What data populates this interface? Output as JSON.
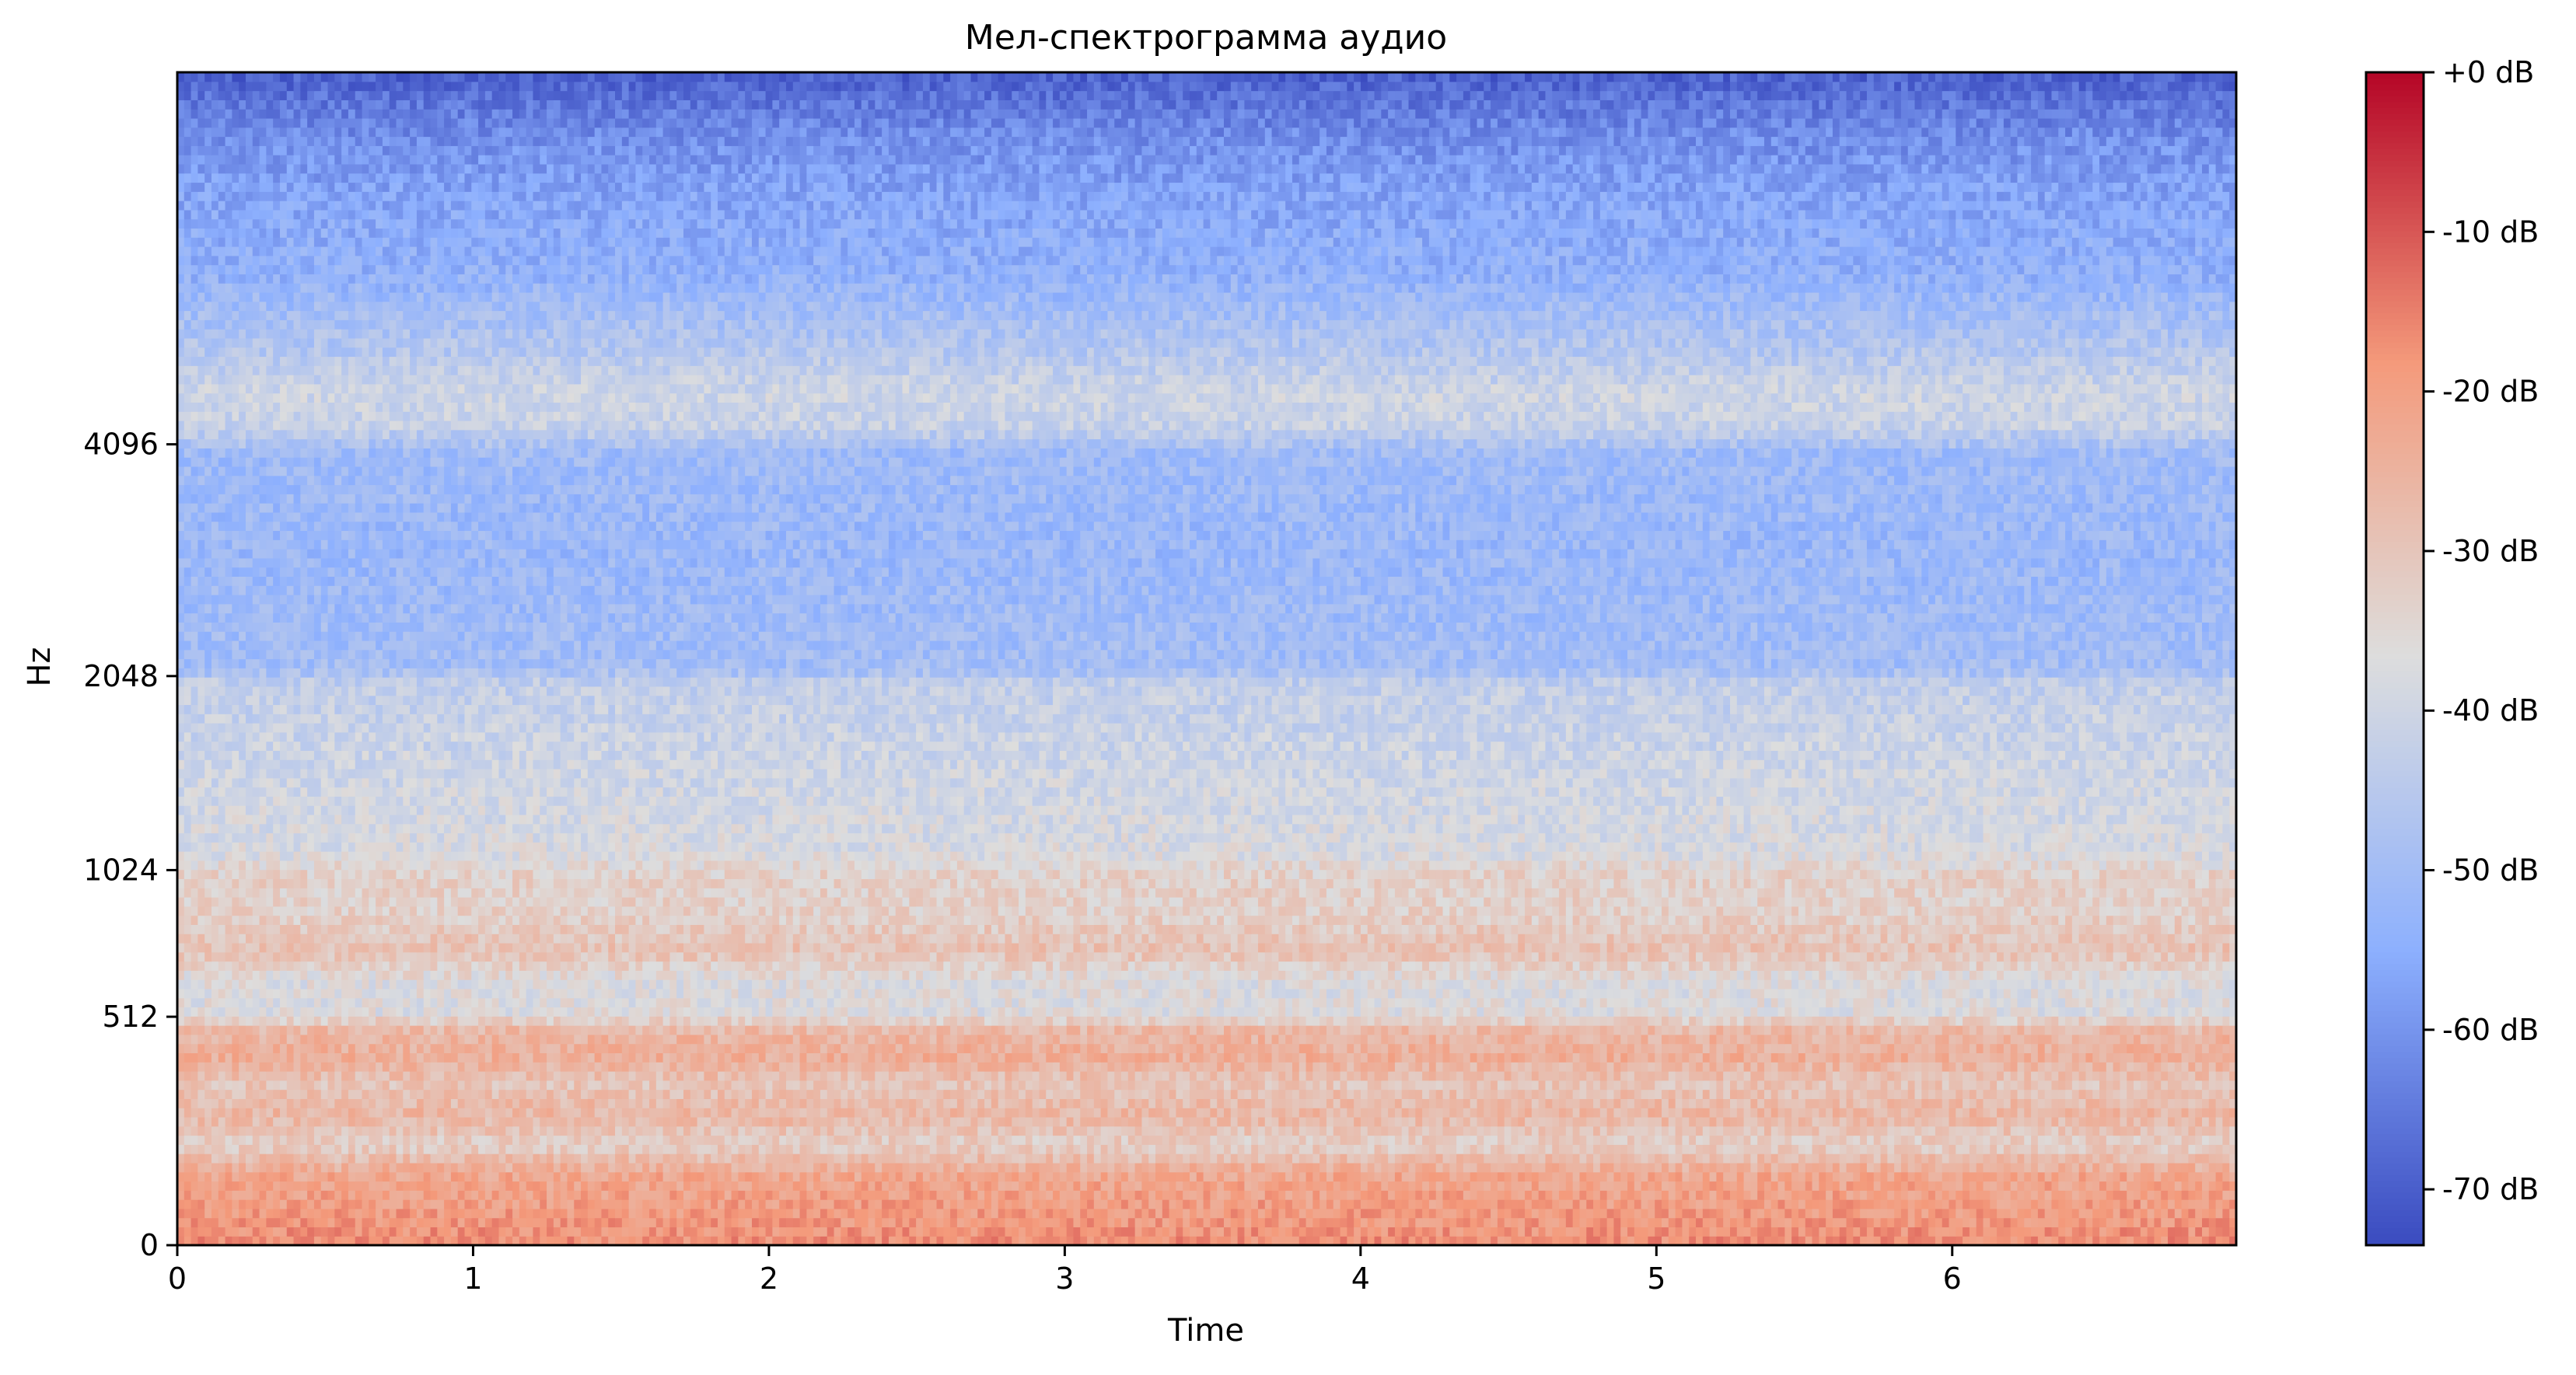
{
  "chart_data": {
    "type": "heatmap",
    "title": "Мел-спектрограмма аудио",
    "xlabel": "Time",
    "ylabel": "Hz",
    "x_ticks": [
      {
        "value": 0,
        "label": "0"
      },
      {
        "value": 1,
        "label": "1"
      },
      {
        "value": 2,
        "label": "2"
      },
      {
        "value": 3,
        "label": "3"
      },
      {
        "value": 4,
        "label": "4"
      },
      {
        "value": 5,
        "label": "5"
      },
      {
        "value": 6,
        "label": "6"
      }
    ],
    "xlim": [
      0,
      6.96
    ],
    "y_scale": "mel",
    "y_ticks": [
      {
        "value": 0,
        "label": "0"
      },
      {
        "value": 512,
        "label": "512"
      },
      {
        "value": 1024,
        "label": "1024"
      },
      {
        "value": 2048,
        "label": "2048"
      },
      {
        "value": 4096,
        "label": "4096"
      }
    ],
    "ylim_hz": [
      0,
      11025
    ],
    "colormap": "coolwarm",
    "colorbar": {
      "range": [
        -73.5,
        0
      ],
      "ticks": [
        {
          "value": 0,
          "label": "+0 dB"
        },
        {
          "value": -10,
          "label": "-10 dB"
        },
        {
          "value": -20,
          "label": "-20 dB"
        },
        {
          "value": -30,
          "label": "-30 dB"
        },
        {
          "value": -40,
          "label": "-40 dB"
        },
        {
          "value": -50,
          "label": "-50 dB"
        },
        {
          "value": -60,
          "label": "-60 dB"
        },
        {
          "value": -70,
          "label": "-70 dB"
        }
      ]
    },
    "frequency_profile_db": [
      {
        "hz": 0,
        "db": -17
      },
      {
        "hz": 128,
        "db": -22
      },
      {
        "hz": 192,
        "db": -33
      },
      {
        "hz": 256,
        "db": -26
      },
      {
        "hz": 330,
        "db": -30
      },
      {
        "hz": 400,
        "db": -24
      },
      {
        "hz": 470,
        "db": -26
      },
      {
        "hz": 520,
        "db": -37
      },
      {
        "hz": 620,
        "db": -37
      },
      {
        "hz": 720,
        "db": -29
      },
      {
        "hz": 850,
        "db": -33
      },
      {
        "hz": 1000,
        "db": -33
      },
      {
        "hz": 1100,
        "db": -38
      },
      {
        "hz": 1450,
        "db": -40
      },
      {
        "hz": 2000,
        "db": -43
      },
      {
        "hz": 2100,
        "db": -50
      },
      {
        "hz": 3000,
        "db": -52
      },
      {
        "hz": 4000,
        "db": -51
      },
      {
        "hz": 4300,
        "db": -42
      },
      {
        "hz": 4700,
        "db": -40
      },
      {
        "hz": 5300,
        "db": -46
      },
      {
        "hz": 6500,
        "db": -54
      },
      {
        "hz": 8000,
        "db": -57
      },
      {
        "hz": 9500,
        "db": -62
      },
      {
        "hz": 11025,
        "db": -70
      }
    ],
    "n_time_frames": 301
  }
}
